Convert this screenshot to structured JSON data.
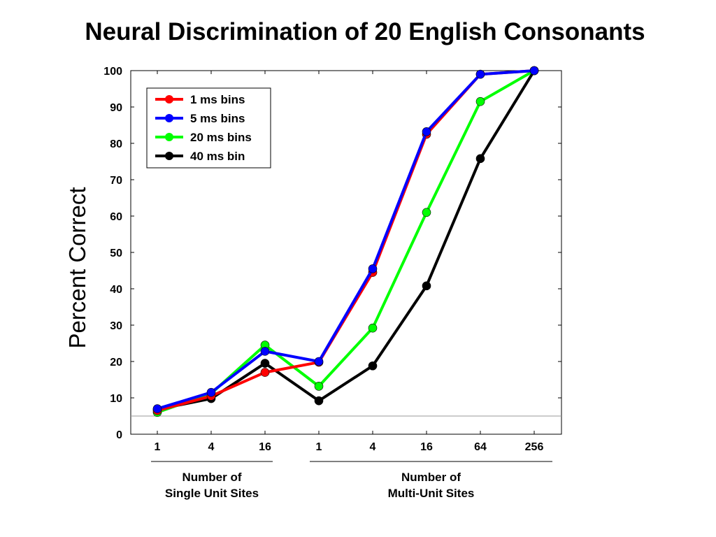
{
  "chart_data": {
    "type": "line",
    "title": "Neural Discrimination of 20 English Consonants",
    "ylabel": "Percent Correct",
    "xlabel": "",
    "ylim": [
      0,
      100
    ],
    "yticks": [
      0,
      10,
      20,
      30,
      40,
      50,
      60,
      70,
      80,
      90,
      100
    ],
    "categories": [
      "1",
      "4",
      "16",
      "1",
      "4",
      "16",
      "64",
      "256"
    ],
    "groups": [
      {
        "label_line1": "Number of",
        "label_line2": "Single Unit Sites",
        "start": 0,
        "end": 2
      },
      {
        "label_line1": "Number of",
        "label_line2": "Multi-Unit Sites",
        "start": 3,
        "end": 7
      }
    ],
    "chance_level": 5,
    "grid": false,
    "legend_position": "top-left",
    "series": [
      {
        "name": "1 ms bins",
        "color": "#ff0000",
        "values": [
          6.5,
          10.5,
          17,
          19.8,
          44.5,
          82.5,
          99,
          100
        ]
      },
      {
        "name": "5 ms bins",
        "color": "#0000ff",
        "values": [
          7,
          11.5,
          22.8,
          20,
          45.5,
          83.2,
          99,
          100
        ]
      },
      {
        "name": "20 ms bins",
        "color": "#00ff00",
        "values": [
          6,
          11.2,
          24.5,
          13.2,
          29.2,
          61,
          91.5,
          100
        ]
      },
      {
        "name": "40 ms bin",
        "color": "#000000",
        "values": [
          6.8,
          9.8,
          19.5,
          9.2,
          18.8,
          40.8,
          75.8,
          100
        ]
      }
    ]
  }
}
